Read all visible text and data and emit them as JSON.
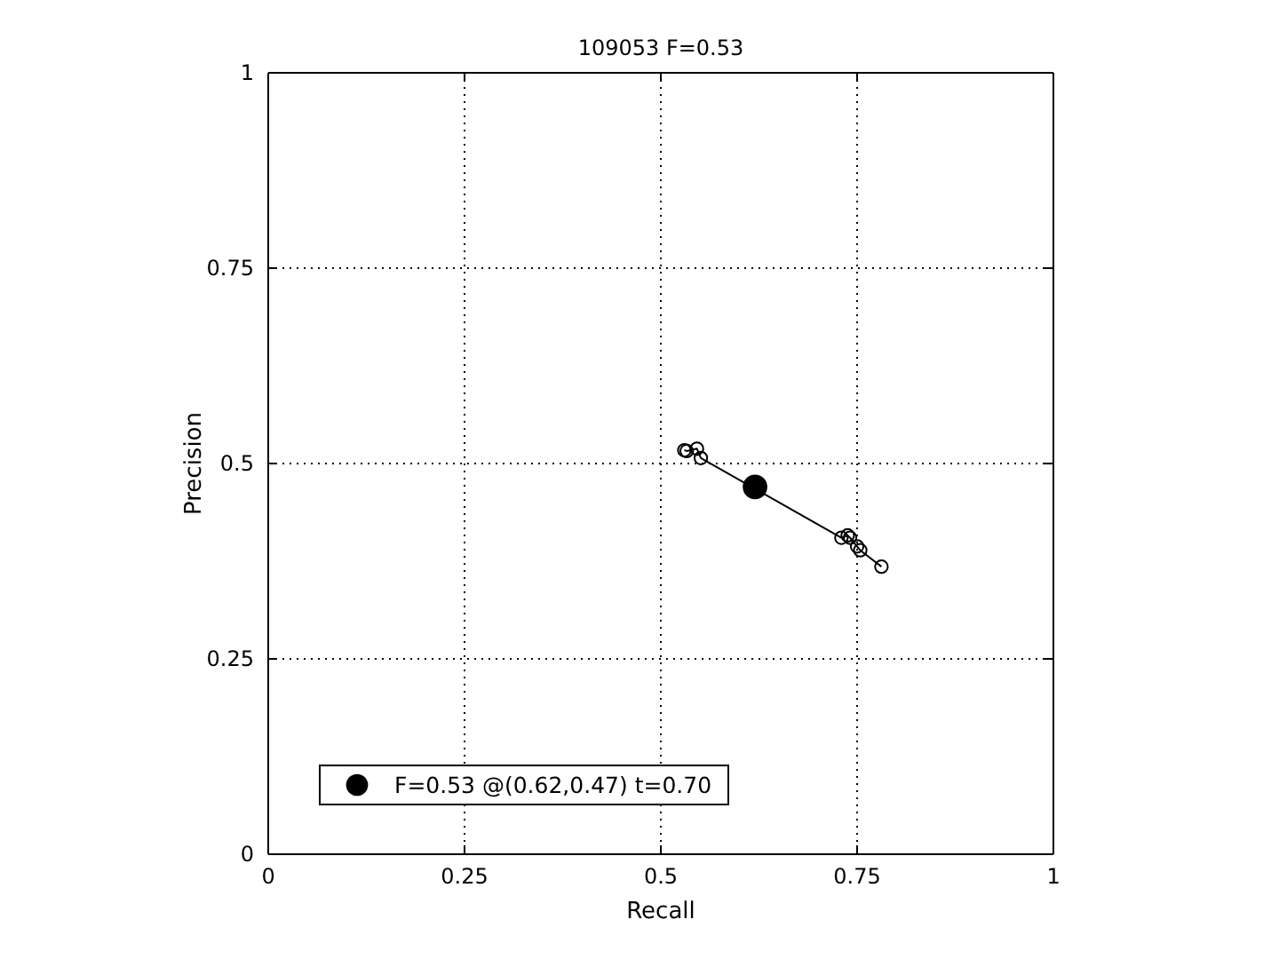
{
  "chart_data": {
    "type": "line",
    "title": "109053 F=0.53",
    "xlabel": "Recall",
    "ylabel": "Precision",
    "xlim": [
      0,
      1
    ],
    "ylim": [
      0,
      1
    ],
    "xticks": [
      0,
      0.25,
      0.5,
      0.75,
      1
    ],
    "yticks": [
      0,
      0.25,
      0.5,
      0.75,
      1
    ],
    "grid": true,
    "marker": "circle",
    "legend": "bottom left",
    "series": [
      {
        "color": "#000000",
        "x": [
          0.53,
          0.533,
          0.546,
          0.551,
          0.73,
          0.738,
          0.741,
          0.75,
          0.754,
          0.781
        ],
        "values": [
          0.517,
          0.516,
          0.519,
          0.507,
          0.405,
          0.408,
          0.405,
          0.394,
          0.389,
          0.368
        ]
      },
      {
        "type": "scatter",
        "name": "F=0.53 @(0.62,0.47) t=0.70",
        "color": "#000000",
        "x": [
          0.62
        ],
        "values": [
          0.47
        ]
      }
    ]
  }
}
